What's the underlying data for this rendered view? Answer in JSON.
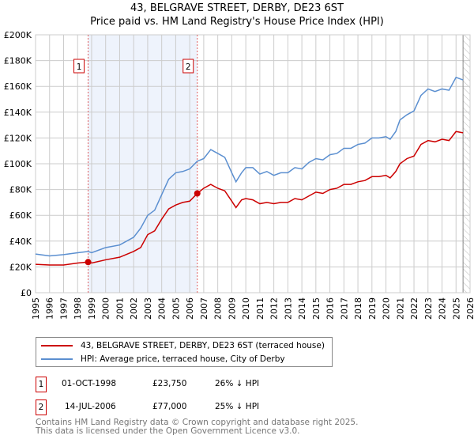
{
  "chart_data": {
    "type": "line",
    "title": "43, BELGRAVE STREET, DERBY, DE23 6ST",
    "subtitle": "Price paid vs. HM Land Registry's House Price Index (HPI)",
    "xlim": [
      1995,
      2026
    ],
    "ylim": [
      0,
      200000
    ],
    "yticks": [
      "£0",
      "£20K",
      "£40K",
      "£60K",
      "£80K",
      "£100K",
      "£120K",
      "£140K",
      "£160K",
      "£180K",
      "£200K"
    ],
    "xticks": [
      "1995",
      "1996",
      "1997",
      "1998",
      "1999",
      "2000",
      "2001",
      "2002",
      "2003",
      "2004",
      "2005",
      "2006",
      "2007",
      "2008",
      "2009",
      "2010",
      "2011",
      "2012",
      "2013",
      "2014",
      "2015",
      "2016",
      "2017",
      "2018",
      "2019",
      "2020",
      "2021",
      "2022",
      "2023",
      "2024",
      "2025",
      "2026"
    ],
    "grid": true,
    "series": [
      {
        "name": "43, BELGRAVE STREET, DERBY, DE23 6ST (terraced house)",
        "color": "#cc0000",
        "x": [
          1995,
          1996,
          1997,
          1998,
          1998.75,
          1999,
          2000,
          2001,
          2002,
          2002.5,
          2003,
          2003.5,
          2004,
          2004.5,
          2005,
          2005.5,
          2006,
          2006.54,
          2007,
          2007.5,
          2008,
          2008.5,
          2009,
          2009.3,
          2009.7,
          2010,
          2010.5,
          2011,
          2011.5,
          2012,
          2012.5,
          2013,
          2013.5,
          2014,
          2014.5,
          2015,
          2015.5,
          2016,
          2016.5,
          2017,
          2017.5,
          2018,
          2018.5,
          2019,
          2019.5,
          2020,
          2020.3,
          2020.7,
          2021,
          2021.5,
          2022,
          2022.5,
          2023,
          2023.5,
          2024,
          2024.5,
          2025,
          2025.5
        ],
        "y": [
          22,
          21.5,
          21.5,
          23,
          23.75,
          23,
          25.5,
          27.5,
          32,
          35,
          45,
          48,
          57,
          65,
          68,
          70,
          71,
          77,
          81,
          84,
          81,
          79,
          71,
          66,
          72,
          73,
          72,
          69,
          70,
          69,
          70,
          70,
          73,
          72,
          75,
          78,
          77,
          80,
          81,
          84,
          84,
          86,
          87,
          90,
          90,
          91,
          89,
          94,
          100,
          104,
          106,
          115,
          118,
          117,
          119,
          118,
          125,
          124
        ]
      },
      {
        "name": "HPI: Average price, terraced house, City of Derby",
        "color": "#5b8fd0",
        "x": [
          1995,
          1996,
          1997,
          1998,
          1998.75,
          1999,
          2000,
          2001,
          2002,
          2002.5,
          2003,
          2003.5,
          2004,
          2004.5,
          2005,
          2005.5,
          2006,
          2006.54,
          2007,
          2007.5,
          2008,
          2008.5,
          2009,
          2009.3,
          2009.7,
          2010,
          2010.5,
          2011,
          2011.5,
          2012,
          2012.5,
          2013,
          2013.5,
          2014,
          2014.5,
          2015,
          2015.5,
          2016,
          2016.5,
          2017,
          2017.5,
          2018,
          2018.5,
          2019,
          2019.5,
          2020,
          2020.3,
          2020.7,
          2021,
          2021.5,
          2022,
          2022.5,
          2023,
          2023.5,
          2024,
          2024.5,
          2025,
          2025.5
        ],
        "y": [
          30,
          28.5,
          29.5,
          31,
          32,
          31,
          35,
          37,
          43,
          50,
          60,
          64,
          76,
          88,
          93,
          94,
          96,
          102,
          104,
          111,
          108,
          105,
          93,
          86,
          93,
          97,
          97,
          92,
          94,
          91,
          93,
          93,
          97,
          96,
          101,
          104,
          103,
          107,
          108,
          112,
          112,
          115,
          116,
          120,
          120,
          121,
          119,
          125,
          134,
          138,
          141,
          153,
          158,
          156,
          158,
          157,
          167,
          165
        ]
      }
    ],
    "y_units": "thousands GBP",
    "sales": [
      {
        "label": "1",
        "x": 1998.75,
        "y": 23.75,
        "date": "01-OCT-1998",
        "price": "£23,750",
        "hpi": "26% ↓ HPI"
      },
      {
        "label": "2",
        "x": 2006.54,
        "y": 77,
        "date": "14-JUL-2006",
        "price": "£77,000",
        "hpi": "25% ↓ HPI"
      }
    ],
    "forecast_start": 2025.5,
    "legend_placement": "below"
  },
  "footer": {
    "line1": "Contains HM Land Registry data © Crown copyright and database right 2025.",
    "line2": "This data is licensed under the Open Government Licence v3.0."
  }
}
